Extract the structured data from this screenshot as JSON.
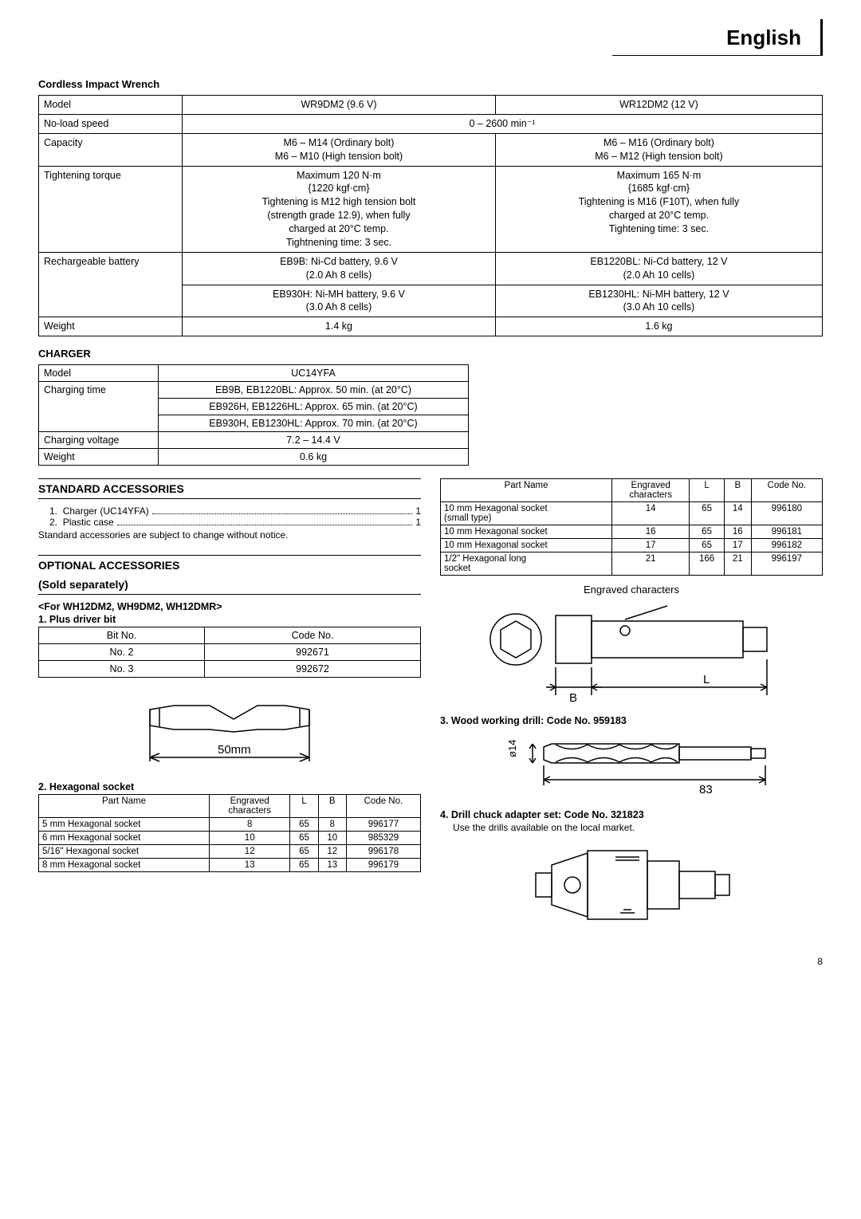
{
  "header": {
    "language": "English"
  },
  "wrench": {
    "title": "Cordless Impact Wrench",
    "rows": {
      "model_label": "Model",
      "model_a": "WR9DM2 (9.6 V)",
      "model_b": "WR12DM2 (12 V)",
      "speed_label": "No-load speed",
      "speed_val": "0 – 2600 min⁻¹",
      "capacity_label": "Capacity",
      "cap_a": "M6 – M14 (Ordinary bolt)\nM6 – M10 (High tension bolt)",
      "cap_b": "M6 – M16 (Ordinary bolt)\nM6 – M12 (High tension bolt)",
      "torque_label": "Tightening torque",
      "torque_a": "Maximum 120 N·m\n{1220 kgf·cm}\nTightening is M12 high tension bolt\n(strength grade 12.9), when fully\ncharged at 20°C temp.\nTightnening time: 3 sec.",
      "torque_b": "Maximum 165 N·m\n{1685 kgf·cm}\nTightening is M16 (F10T), when fully\ncharged at 20°C temp.\nTightening time: 3 sec.",
      "batt_label": "Rechargeable battery",
      "batt_a1": "EB9B: Ni-Cd battery, 9.6 V\n(2.0 Ah 8 cells)",
      "batt_b1": "EB1220BL: Ni-Cd battery, 12 V\n(2.0 Ah 10 cells)",
      "batt_a2": "EB930H: Ni-MH battery, 9.6 V\n(3.0 Ah 8 cells)",
      "batt_b2": "EB1230HL: Ni-MH battery, 12 V\n(3.0 Ah 10 cells)",
      "weight_label": "Weight",
      "weight_a": "1.4 kg",
      "weight_b": "1.6 kg"
    }
  },
  "charger": {
    "title": "CHARGER",
    "model_label": "Model",
    "model_val": "UC14YFA",
    "time_label": "Charging time",
    "time_1": "EB9B, EB1220BL: Approx. 50 min. (at 20°C)",
    "time_2": "EB926H, EB1226HL: Approx. 65 min. (at 20°C)",
    "time_3": "EB930H, EB1230HL: Approx. 70 min. (at 20°C)",
    "volt_label": "Charging voltage",
    "volt_val": "7.2 – 14.4 V",
    "weight_label": "Weight",
    "weight_val": "0.6 kg"
  },
  "std_acc": {
    "title": "STANDARD ACCESSORIES",
    "items": [
      {
        "idx": "1.",
        "text": "Charger (UC14YFA)",
        "qty": "1"
      },
      {
        "idx": "2.",
        "text": "Plastic case",
        "qty": "1"
      }
    ],
    "note": "Standard accessories are subject to change without notice."
  },
  "opt_acc": {
    "title": "OPTIONAL ACCESSORIES",
    "subtitle": "(Sold separately)",
    "for_models": "<For WH12DM2, WH9DM2, WH12DMR>",
    "driver_bit": {
      "heading": "1.  Plus driver bit",
      "th_bit": "Bit No.",
      "th_code": "Code No.",
      "rows": [
        {
          "bit": "No. 2",
          "code": "992671"
        },
        {
          "bit": "No. 3",
          "code": "992672"
        }
      ],
      "fig_label": "50mm"
    },
    "hex_socket": {
      "heading": "2.  Hexagonal socket",
      "th_pn": "Part Name",
      "th_ec": "Engraved\ncharacters",
      "th_l": "L",
      "th_b": "B",
      "th_code": "Code No.",
      "rows_left": [
        {
          "pn": "5 mm Hexagonal socket",
          "ec": "8",
          "l": "65",
          "b": "8",
          "code": "996177"
        },
        {
          "pn": "6 mm Hexagonal socket",
          "ec": "10",
          "l": "65",
          "b": "10",
          "code": "985329"
        },
        {
          "pn": "5/16\" Hexagonal socket",
          "ec": "12",
          "l": "65",
          "b": "12",
          "code": "996178"
        },
        {
          "pn": "8 mm Hexagonal socket",
          "ec": "13",
          "l": "65",
          "b": "13",
          "code": "996179"
        }
      ],
      "rows_right": [
        {
          "pn": "10 mm Hexagonal socket\n(small type)",
          "ec": "14",
          "l": "65",
          "b": "14",
          "code": "996180"
        },
        {
          "pn": "10 mm Hexagonal socket",
          "ec": "16",
          "l": "65",
          "b": "16",
          "code": "996181"
        },
        {
          "pn": "10 mm Hexagonal socket",
          "ec": "17",
          "l": "65",
          "b": "17",
          "code": "996182"
        },
        {
          "pn": "1/2\" Hexagonal long\nsocket",
          "ec": "21",
          "l": "166",
          "b": "21",
          "code": "996197"
        }
      ],
      "fig_engraved": "Engraved characters",
      "fig_b": "B",
      "fig_l": "L"
    },
    "wood_drill": {
      "heading": "3.  Wood working drill: Code No. 959183",
      "dia": "ø14",
      "len": "83"
    },
    "chuck": {
      "heading": "4.  Drill chuck adapter set: Code No. 321823",
      "note": "Use the drills available on the local market."
    }
  },
  "page": "8"
}
